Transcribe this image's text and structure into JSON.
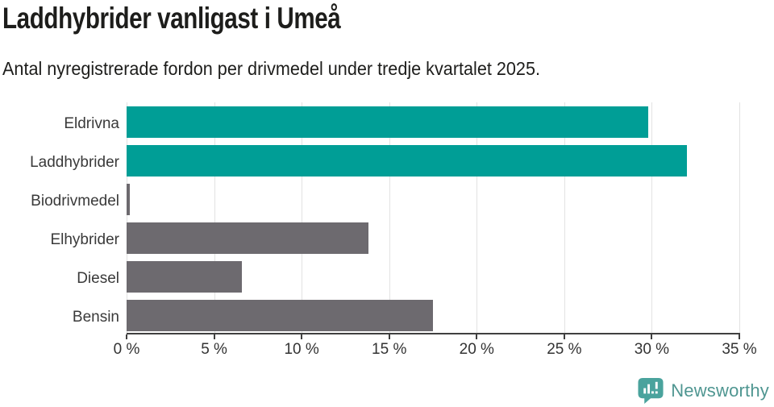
{
  "title": "Laddhybrider vanligast i Umeå",
  "subtitle": "Antal nyregistrerade fordon per drivmedel under tredje kvartalet 2025.",
  "chart_data": {
    "type": "bar",
    "orientation": "horizontal",
    "title": "Laddhybrider vanligast i Umeå",
    "subtitle": "Antal nyregistrerade fordon per drivmedel under tredje kvartalet 2025.",
    "categories": [
      "Eldrivna",
      "Laddhybrider",
      "Biodrivmedel",
      "Elhybrider",
      "Diesel",
      "Bensin"
    ],
    "values": [
      29.8,
      32.0,
      0.2,
      13.8,
      6.6,
      17.5
    ],
    "unit": "%",
    "bar_colors": [
      "#009E96",
      "#009E96",
      "#6D6A6F",
      "#6D6A6F",
      "#6D6A6F",
      "#6D6A6F"
    ],
    "xlabel": "",
    "ylabel": "",
    "xlim": [
      0,
      35
    ],
    "x_ticks": [
      0,
      5,
      10,
      15,
      20,
      25,
      30,
      35
    ],
    "x_tick_labels": [
      "0 %",
      "5 %",
      "10 %",
      "15 %",
      "20 %",
      "25 %",
      "30 %",
      "35 %"
    ],
    "grid": true,
    "legend": false
  },
  "colors": {
    "highlight_teal": "#009E96",
    "neutral_gray": "#6D6A6F",
    "gridline": "#E2E2E2",
    "axis": "#404040",
    "text_dark": "#1D1D1B",
    "logo_teal": "#4AA39D",
    "logo_text": "#4F9691"
  },
  "branding": {
    "wordmark": "Newsworthy"
  }
}
